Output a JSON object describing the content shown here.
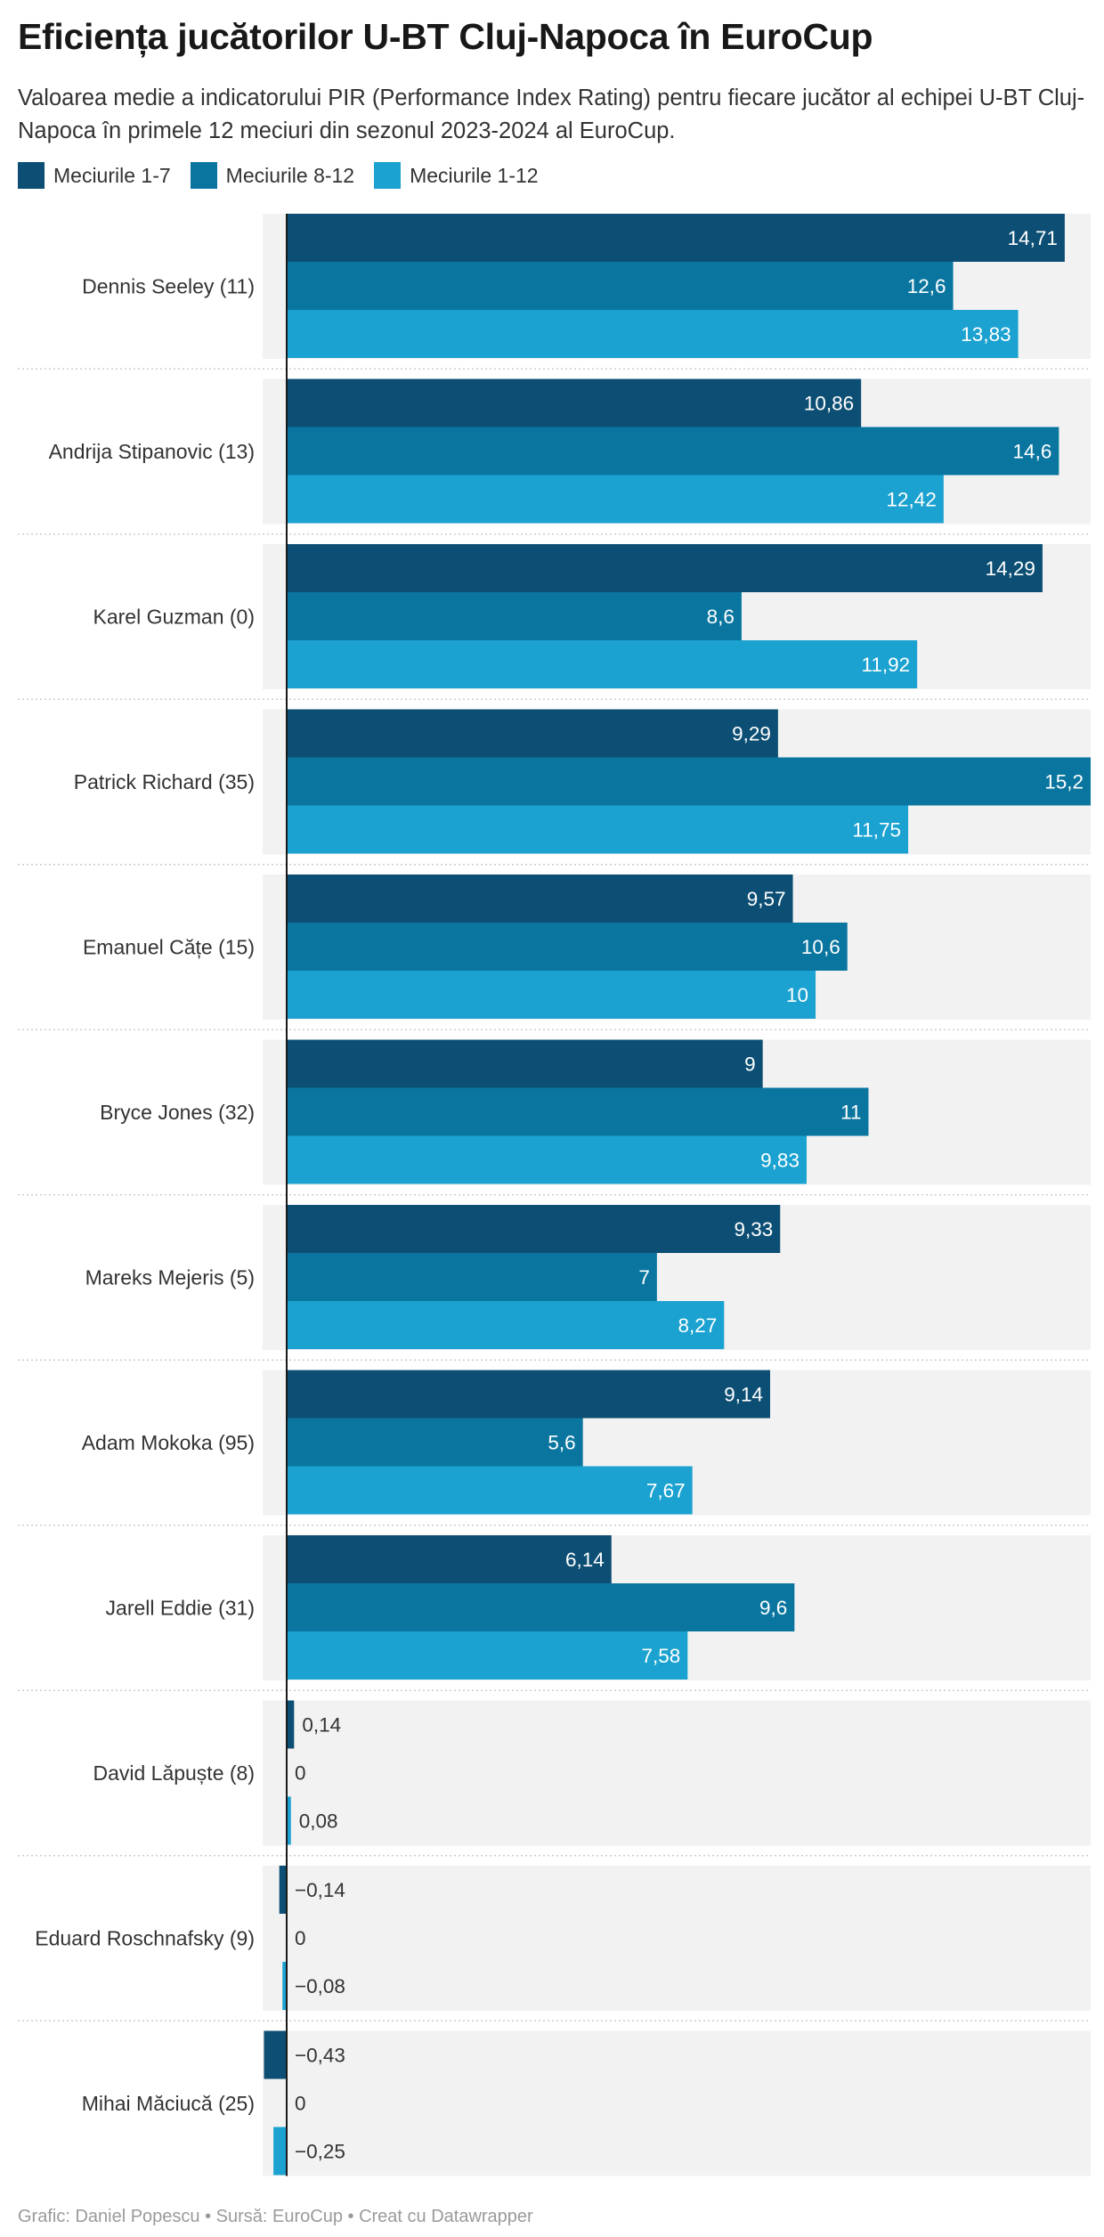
{
  "title": "Eficiența jucătorilor U-BT Cluj-Napoca în EuroCup",
  "subtitle": "Valoarea medie a indicatorului PIR (Performance Index Rating) pentru fiecare jucător al echipei U-BT Cluj-Napoca în primele 12 meciuri din sezonul 2023-2024 al EuroCup.",
  "footer": {
    "text": "Grafic: Daniel Popescu • Sursă: EuroCup • Creat cu Datawrapper"
  },
  "chart_data": {
    "type": "bar",
    "orientation": "horizontal",
    "grouped": true,
    "categories": [
      "Dennis Seeley (11)",
      "Andrija Stipanovic (13)",
      "Karel Guzman (0)",
      "Patrick Richard (35)",
      "Emanuel Cățe (15)",
      "Bryce Jones (32)",
      "Mareks Mejeris (5)",
      "Adam Mokoka (95)",
      "Jarell Eddie (31)",
      "David Lăpuște (8)",
      "Eduard Roschnafsky (9)",
      "Mihai Măciucă (25)"
    ],
    "series": [
      {
        "name": "Meciurile 1-7",
        "color": "#0d4f74",
        "values": [
          14.71,
          10.86,
          14.29,
          9.29,
          9.57,
          9,
          9.33,
          9.14,
          6.14,
          0.14,
          -0.14,
          -0.43
        ],
        "labels": [
          "14,71",
          "10,86",
          "14,29",
          "9,29",
          "9,57",
          "9",
          "9,33",
          "9,14",
          "6,14",
          "0,14",
          "−0,14",
          "−0,43"
        ]
      },
      {
        "name": "Meciurile 8-12",
        "color": "#0a76a0",
        "values": [
          12.6,
          14.6,
          8.6,
          15.2,
          10.6,
          11,
          7,
          5.6,
          9.6,
          0,
          0,
          0
        ],
        "labels": [
          "12,6",
          "14,6",
          "8,6",
          "15,2",
          "10,6",
          "11",
          "7",
          "5,6",
          "9,6",
          "0",
          "0",
          "0"
        ]
      },
      {
        "name": "Meciurile 1-12",
        "color": "#1ba2d0",
        "values": [
          13.83,
          12.42,
          11.92,
          11.75,
          10,
          9.83,
          8.27,
          7.67,
          7.58,
          0.08,
          -0.08,
          -0.25
        ],
        "labels": [
          "13,83",
          "12,42",
          "11,92",
          "11,75",
          "10",
          "9,83",
          "8,27",
          "7,67",
          "7,58",
          "0,08",
          "−0,08",
          "−0,25"
        ]
      }
    ],
    "xlim": [
      -0.43,
      15.2
    ],
    "grid": false,
    "legend_position": "top-left",
    "row_background_color": "#f2f2f2",
    "separator_color": "#cccccc"
  }
}
